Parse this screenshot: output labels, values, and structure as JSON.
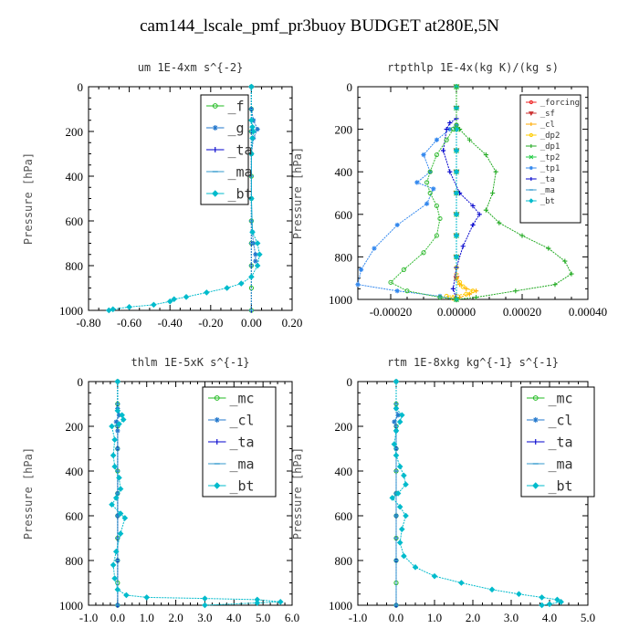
{
  "page": {
    "title": "cam144_lscale_pmf_pr3buoy  BUDGET at280E,5N"
  },
  "chart_data": [
    {
      "type": "line",
      "title": "um  1E-4xm s^{-2}",
      "ylabel": "Pressure [hPa]",
      "xlim": [
        -0.8,
        0.2
      ],
      "ylim": [
        0,
        1000
      ],
      "xticks": [
        "-0.80",
        "-0.60",
        "-0.40",
        "-0.20",
        "0.00",
        "0.20"
      ],
      "yticks": [
        "0",
        "200",
        "400",
        "600",
        "800",
        "1000"
      ],
      "legend": "top-right",
      "series": [
        {
          "name": "_f",
          "color": "#22bb22",
          "marker": "o",
          "x": [
            0,
            0,
            0,
            0,
            0,
            0,
            0,
            0,
            0,
            0,
            0
          ],
          "y": [
            0,
            100,
            200,
            300,
            400,
            500,
            600,
            700,
            800,
            900,
            1000
          ]
        },
        {
          "name": "_g",
          "color": "#2277cc",
          "marker": "star",
          "x": [
            0,
            0,
            0.01,
            0.03,
            0.01,
            0,
            0,
            0.005,
            0.01,
            0.02,
            0.02
          ],
          "y": [
            0,
            100,
            150,
            190,
            230,
            300,
            500,
            650,
            700,
            750,
            780
          ]
        },
        {
          "name": "_ta",
          "color": "#0000cc",
          "marker": "plus",
          "x": [
            0,
            0,
            0,
            0,
            0,
            0,
            0,
            0,
            0,
            0
          ],
          "y": [
            0,
            100,
            200,
            300,
            400,
            500,
            600,
            700,
            800,
            1000
          ]
        },
        {
          "name": "_ma",
          "color": "#3399cc",
          "marker": "dash",
          "x": [
            0,
            0,
            0,
            0,
            0,
            0,
            0,
            0,
            0,
            0
          ],
          "y": [
            0,
            100,
            200,
            300,
            400,
            500,
            600,
            700,
            800,
            1000
          ]
        },
        {
          "name": "_bt",
          "color": "#00bbcc",
          "marker": "diamond",
          "x": [
            0,
            0,
            0.005,
            0.01,
            0.005,
            0,
            0,
            0.005,
            0.03,
            0.04,
            0.03,
            0,
            -0.05,
            -0.12,
            -0.22,
            -0.32,
            -0.38,
            -0.4,
            -0.48,
            -0.6,
            -0.68,
            -0.7
          ],
          "y": [
            0,
            150,
            180,
            200,
            230,
            300,
            500,
            650,
            700,
            750,
            800,
            850,
            880,
            900,
            920,
            940,
            950,
            960,
            975,
            985,
            995,
            1000
          ]
        }
      ]
    },
    {
      "type": "line",
      "title": "rtpthlp  1E-4x(kg K)/(kg s)",
      "ylabel": "Pressure [hPa]",
      "xlim": [
        -0.0003,
        0.0004
      ],
      "ylim": [
        0,
        1000
      ],
      "xticks": [
        "-0.00020",
        "0.00000",
        "0.00020",
        "0.00040"
      ],
      "yticks": [
        "0",
        "200",
        "400",
        "600",
        "800",
        "1000"
      ],
      "legend": "top-right",
      "series": [
        {
          "name": "_forcing",
          "color": "#ee2222",
          "marker": "o",
          "x": [
            0,
            0,
            0,
            0,
            0,
            0,
            0,
            0,
            0,
            0,
            0
          ],
          "y": [
            0,
            100,
            200,
            300,
            400,
            500,
            600,
            700,
            800,
            900,
            1000
          ]
        },
        {
          "name": "_sf",
          "color": "#cc3333",
          "marker": "tri",
          "x": [
            0,
            0,
            0,
            0,
            0,
            0,
            0,
            0,
            0,
            0,
            0
          ],
          "y": [
            0,
            100,
            200,
            300,
            400,
            500,
            600,
            700,
            800,
            900,
            1000
          ]
        },
        {
          "name": "_cl",
          "color": "#ffaa00",
          "marker": "plus",
          "x": [
            0,
            0,
            0,
            0,
            0,
            0,
            0,
            0,
            1e-05,
            3e-05,
            6e-05,
            4e-05,
            1e-05,
            0
          ],
          "y": [
            0,
            200,
            400,
            600,
            800,
            850,
            880,
            900,
            930,
            950,
            960,
            975,
            990,
            1000
          ]
        },
        {
          "name": "_dp2",
          "color": "#ffcc00",
          "marker": "o",
          "x": [
            0,
            0,
            0,
            0,
            0,
            0,
            0,
            1e-05,
            2e-05,
            5e-05,
            3e-05,
            -3e-05,
            -1e-05,
            0
          ],
          "y": [
            0,
            200,
            400,
            600,
            800,
            850,
            900,
            920,
            940,
            960,
            975,
            985,
            995,
            1000
          ]
        },
        {
          "name": "_dp1",
          "color": "#22aa22",
          "marker": "plus",
          "x": [
            0,
            0,
            1e-05,
            4e-05,
            9e-05,
            0.00012,
            0.00011,
            9e-05,
            0.00013,
            0.0002,
            0.00028,
            0.00033,
            0.00035,
            0.0003,
            0.00018,
            6e-05,
            0
          ],
          "y": [
            0,
            180,
            200,
            250,
            320,
            400,
            500,
            580,
            640,
            700,
            760,
            820,
            880,
            930,
            960,
            990,
            1000
          ]
        },
        {
          "name": "_tp2",
          "color": "#22cc44",
          "marker": "x",
          "x": [
            0,
            0,
            0,
            0,
            0,
            0,
            0,
            0,
            0,
            0
          ],
          "y": [
            0,
            100,
            200,
            300,
            400,
            500,
            600,
            700,
            800,
            1000
          ]
        },
        {
          "name": "_tp1",
          "color": "#3388ee",
          "marker": "star",
          "x": [
            0,
            0,
            -2e-05,
            -6e-05,
            -0.0001,
            -8e-05,
            -0.00012,
            -7e-05,
            -9e-05,
            -0.00018,
            -0.00025,
            -0.00029,
            -0.0003,
            -0.00018,
            -5e-05,
            0
          ],
          "y": [
            0,
            180,
            200,
            250,
            320,
            400,
            450,
            480,
            550,
            650,
            760,
            860,
            930,
            960,
            985,
            1000
          ]
        },
        {
          "name": "_ta",
          "color": "#0000cc",
          "marker": "plus",
          "x": [
            0,
            0,
            -2e-05,
            -3e-05,
            -4e-05,
            -2e-05,
            1e-05,
            5e-05,
            7e-05,
            5e-05,
            2e-05,
            0,
            -1e-05,
            0
          ],
          "y": [
            0,
            150,
            170,
            200,
            300,
            400,
            500,
            560,
            600,
            650,
            750,
            850,
            950,
            1000
          ]
        },
        {
          "name": "_ma",
          "color": "#3399cc",
          "marker": "dash",
          "x": [
            0,
            0,
            0,
            0,
            0,
            0,
            0,
            0,
            0,
            0
          ],
          "y": [
            0,
            100,
            200,
            300,
            400,
            500,
            600,
            700,
            800,
            1000
          ]
        },
        {
          "name": "_bt",
          "color": "#00bbcc",
          "marker": "diamond",
          "x": [
            0,
            0,
            0,
            0,
            0,
            0,
            0,
            0,
            0,
            0
          ],
          "y": [
            0,
            100,
            200,
            300,
            400,
            500,
            600,
            700,
            800,
            1000
          ]
        },
        {
          "name": "",
          "color": "#33bb33",
          "marker": "o",
          "x": [
            0,
            0,
            -1e-05,
            -3e-05,
            -6e-05,
            -8e-05,
            -9e-05,
            -8e-05,
            -6e-05,
            -5e-05,
            -6e-05,
            -0.0001,
            -0.00016,
            -0.0002,
            -0.00015,
            -5e-05,
            0
          ],
          "y": [
            0,
            180,
            200,
            250,
            320,
            400,
            450,
            500,
            560,
            620,
            700,
            780,
            860,
            920,
            960,
            990,
            1000
          ]
        }
      ]
    },
    {
      "type": "line",
      "title": "thlm  1E-5xK s^{-1}",
      "ylabel": "Pressure [hPa]",
      "xlim": [
        -1.0,
        6.0
      ],
      "ylim": [
        0,
        1000
      ],
      "xticks": [
        "-1.0",
        "0.0",
        "1.0",
        "2.0",
        "3.0",
        "4.0",
        "5.0",
        "6.0"
      ],
      "yticks": [
        "0",
        "200",
        "400",
        "600",
        "800",
        "1000"
      ],
      "legend": "top-right",
      "series": [
        {
          "name": "_mc",
          "color": "#22bb22",
          "marker": "o",
          "x": [
            0,
            0,
            0,
            0,
            0,
            0,
            0,
            0,
            0,
            0,
            0
          ],
          "y": [
            0,
            100,
            200,
            300,
            400,
            500,
            600,
            700,
            800,
            900,
            1000
          ]
        },
        {
          "name": "_cl",
          "color": "#2277cc",
          "marker": "star",
          "x": [
            0,
            0,
            0.05,
            -0.05,
            0,
            0,
            0,
            0,
            0,
            0
          ],
          "y": [
            0,
            120,
            150,
            180,
            220,
            300,
            500,
            600,
            800,
            1000
          ]
        },
        {
          "name": "_ta",
          "color": "#0000cc",
          "marker": "plus",
          "x": [
            0,
            0,
            0,
            0,
            0,
            0,
            0,
            0,
            0,
            0
          ],
          "y": [
            0,
            100,
            200,
            300,
            400,
            500,
            600,
            700,
            800,
            1000
          ]
        },
        {
          "name": "_ma",
          "color": "#3399cc",
          "marker": "dash",
          "x": [
            0,
            0,
            0,
            0,
            0,
            0,
            0,
            0,
            0,
            0
          ],
          "y": [
            0,
            100,
            200,
            300,
            400,
            500,
            600,
            700,
            800,
            1000
          ]
        },
        {
          "name": "_bt",
          "color": "#00bbcc",
          "marker": "diamond",
          "x": [
            0,
            0,
            0.15,
            0.2,
            0.05,
            -0.2,
            -0.1,
            -0.15,
            -0.1,
            0.05,
            0.1,
            -0.05,
            -0.2,
            0.1,
            0.25,
            0.1,
            -0.05,
            -0.15,
            -0.1,
            0,
            0.3,
            1.0,
            3.0,
            4.8,
            5.6,
            4.8,
            3.0
          ],
          "y": [
            0,
            130,
            150,
            170,
            190,
            200,
            260,
            330,
            380,
            430,
            480,
            520,
            550,
            590,
            610,
            680,
            760,
            820,
            880,
            930,
            955,
            965,
            970,
            975,
            985,
            990,
            1000
          ]
        }
      ]
    },
    {
      "type": "line",
      "title": "rtm  1E-8xkg kg^{-1} s^{-1}",
      "ylabel": "Pressure [hPa]",
      "xlim": [
        -1.0,
        5.0
      ],
      "ylim": [
        0,
        1000
      ],
      "xticks": [
        "-1.0",
        "0.0",
        "1.0",
        "2.0",
        "3.0",
        "4.0",
        "5.0"
      ],
      "yticks": [
        "0",
        "200",
        "400",
        "600",
        "800",
        "1000"
      ],
      "legend": "top-right",
      "series": [
        {
          "name": "_mc",
          "color": "#22bb22",
          "marker": "o",
          "x": [
            0,
            0,
            0,
            0,
            0,
            0,
            0,
            0,
            0,
            0,
            0
          ],
          "y": [
            0,
            100,
            200,
            300,
            400,
            500,
            600,
            700,
            800,
            900,
            1000
          ]
        },
        {
          "name": "_cl",
          "color": "#2277cc",
          "marker": "star",
          "x": [
            0,
            0,
            0.05,
            -0.05,
            0,
            0,
            0,
            0,
            0,
            0
          ],
          "y": [
            0,
            120,
            150,
            180,
            220,
            300,
            500,
            600,
            800,
            1000
          ]
        },
        {
          "name": "_ta",
          "color": "#0000cc",
          "marker": "plus",
          "x": [
            0,
            0,
            0,
            0,
            0,
            0,
            0,
            0,
            0,
            0
          ],
          "y": [
            0,
            100,
            200,
            300,
            400,
            500,
            600,
            700,
            800,
            1000
          ]
        },
        {
          "name": "_ma",
          "color": "#3399cc",
          "marker": "dash",
          "x": [
            0,
            0,
            0,
            0,
            0,
            0,
            0,
            0,
            0,
            0
          ],
          "y": [
            0,
            100,
            200,
            300,
            400,
            500,
            600,
            700,
            800,
            1000
          ]
        },
        {
          "name": "_bt",
          "color": "#00bbcc",
          "marker": "diamond",
          "x": [
            0,
            0,
            0.15,
            0.1,
            0,
            -0.05,
            0,
            0.1,
            0.2,
            0.25,
            0.05,
            -0.1,
            0.1,
            0.25,
            0.15,
            0.1,
            0.2,
            0.5,
            1.0,
            1.7,
            2.5,
            3.2,
            3.8,
            4.2,
            4.3,
            4.0,
            3.8
          ],
          "y": [
            0,
            120,
            150,
            180,
            220,
            280,
            330,
            380,
            420,
            460,
            500,
            520,
            560,
            600,
            660,
            720,
            780,
            830,
            870,
            900,
            930,
            950,
            965,
            975,
            985,
            995,
            1000
          ]
        }
      ]
    }
  ]
}
